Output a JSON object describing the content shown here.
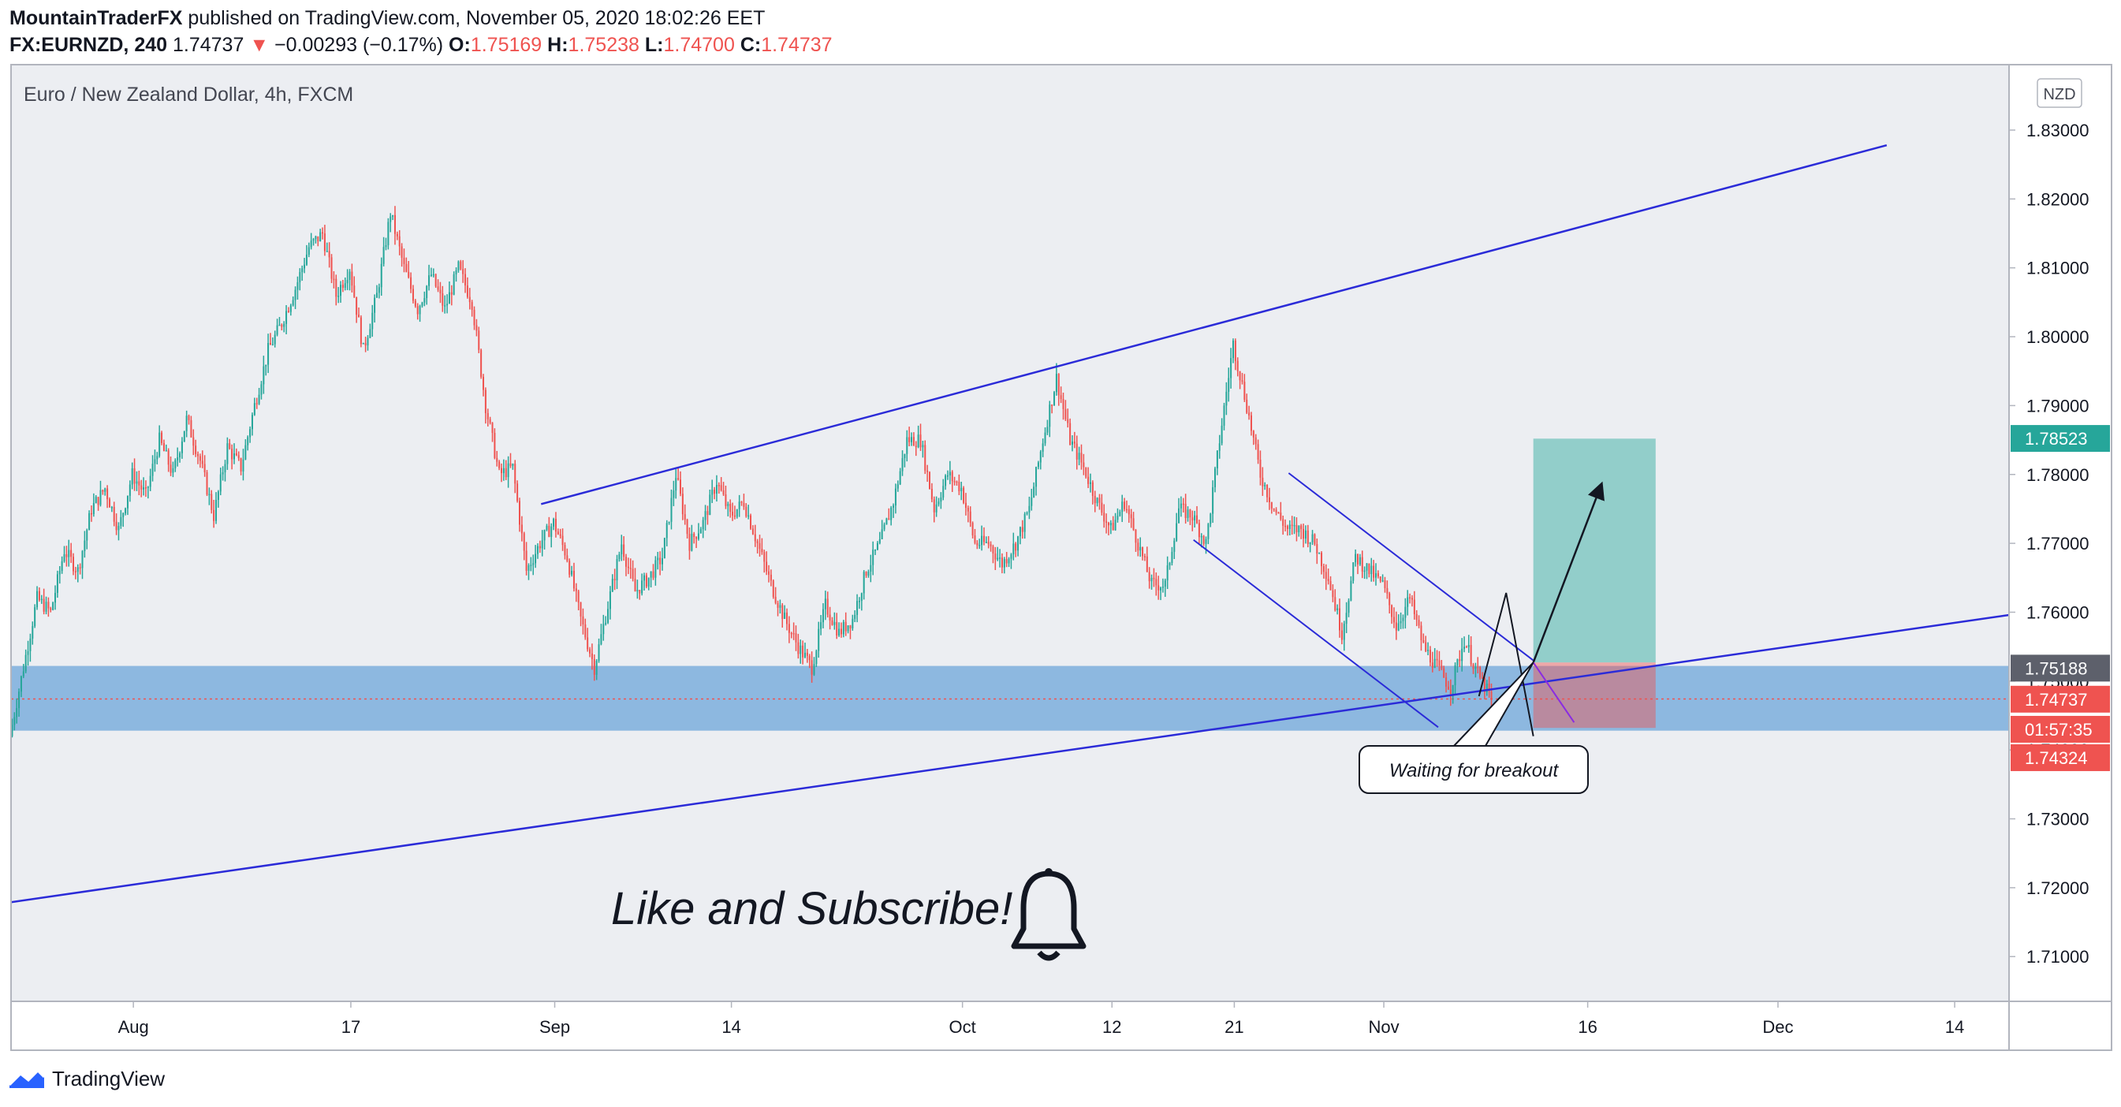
{
  "header": {
    "publisher": "MountainTraderFX",
    "published_text": "published on TradingView.com, November 05, 2020 18:02:26 EET",
    "symbol": "FX:EURNZD, 240",
    "price": "1.74737",
    "change_arrow": "▼",
    "change": "−0.00293 (−0.17%)",
    "o_label": "O:",
    "o_value": "1.75169",
    "h_label": "H:",
    "h_value": "1.75238",
    "l_label": "L:",
    "l_value": "1.74700",
    "c_label": "C:",
    "c_value": "1.74737"
  },
  "chart_data": {
    "type": "candlestick",
    "title": "Euro / New Zealand Dollar, 4h, FXCM",
    "currency": "NZD",
    "ylim": [
      1.7035,
      1.8395
    ],
    "y_ticks": [
      "1.83000",
      "1.82000",
      "1.81000",
      "1.80000",
      "1.79000",
      "1.78000",
      "1.77000",
      "1.76000",
      "1.75000",
      "1.74000",
      "1.73000",
      "1.72000",
      "1.71000"
    ],
    "y_tick_values": [
      1.83,
      1.82,
      1.81,
      1.8,
      1.79,
      1.78,
      1.77,
      1.76,
      1.75,
      1.74,
      1.73,
      1.72,
      1.71
    ],
    "x_ticks": [
      {
        "label": "Aug",
        "day": 0
      },
      {
        "label": "17",
        "day": 16
      },
      {
        "label": "Sep",
        "day": 31
      },
      {
        "label": "14",
        "day": 44
      },
      {
        "label": "Oct",
        "day": 61
      },
      {
        "label": "12",
        "day": 72
      },
      {
        "label": "21",
        "day": 81
      },
      {
        "label": "Nov",
        "day": 92
      },
      {
        "label": "16",
        "day": 107
      },
      {
        "label": "Dec",
        "day": 121
      },
      {
        "label": "14",
        "day": 134
      }
    ],
    "x_domain_days": [
      -9,
      138
    ],
    "price_series": [
      [
        -9,
        1.742
      ],
      [
        -8,
        1.752
      ],
      [
        -7,
        1.762
      ],
      [
        -6,
        1.76
      ],
      [
        -5,
        1.769
      ],
      [
        -4,
        1.766
      ],
      [
        -3,
        1.775
      ],
      [
        -2,
        1.778
      ],
      [
        -1,
        1.772
      ],
      [
        0,
        1.78
      ],
      [
        1,
        1.777
      ],
      [
        2,
        1.785
      ],
      [
        3,
        1.78
      ],
      [
        4,
        1.788
      ],
      [
        5,
        1.782
      ],
      [
        6,
        1.774
      ],
      [
        7,
        1.784
      ],
      [
        8,
        1.781
      ],
      [
        9,
        1.79
      ],
      [
        10,
        1.798
      ],
      [
        11,
        1.802
      ],
      [
        12,
        1.807
      ],
      [
        13,
        1.813
      ],
      [
        14,
        1.815
      ],
      [
        15,
        1.806
      ],
      [
        16,
        1.81
      ],
      [
        17,
        1.798
      ],
      [
        18,
        1.806
      ],
      [
        19,
        1.818
      ],
      [
        20,
        1.81
      ],
      [
        21,
        1.804
      ],
      [
        22,
        1.809
      ],
      [
        23,
        1.804
      ],
      [
        24,
        1.81
      ],
      [
        25,
        1.805
      ],
      [
        26,
        1.79
      ],
      [
        27,
        1.78
      ],
      [
        28,
        1.781
      ],
      [
        29,
        1.766
      ],
      [
        30,
        1.77
      ],
      [
        31,
        1.773
      ],
      [
        32,
        1.768
      ],
      [
        33,
        1.759
      ],
      [
        34,
        1.752
      ],
      [
        35,
        1.761
      ],
      [
        36,
        1.77
      ],
      [
        37,
        1.763
      ],
      [
        38,
        1.765
      ],
      [
        39,
        1.768
      ],
      [
        40,
        1.78
      ],
      [
        41,
        1.77
      ],
      [
        42,
        1.773
      ],
      [
        43,
        1.779
      ],
      [
        44,
        1.774
      ],
      [
        45,
        1.776
      ],
      [
        46,
        1.77
      ],
      [
        47,
        1.764
      ],
      [
        48,
        1.759
      ],
      [
        49,
        1.755
      ],
      [
        50,
        1.752
      ],
      [
        51,
        1.761
      ],
      [
        52,
        1.757
      ],
      [
        53,
        1.759
      ],
      [
        54,
        1.766
      ],
      [
        55,
        1.77
      ],
      [
        56,
        1.776
      ],
      [
        57,
        1.785
      ],
      [
        58,
        1.785
      ],
      [
        59,
        1.775
      ],
      [
        60,
        1.78
      ],
      [
        61,
        1.778
      ],
      [
        62,
        1.77
      ],
      [
        63,
        1.77
      ],
      [
        64,
        1.767
      ],
      [
        65,
        1.77
      ],
      [
        66,
        1.775
      ],
      [
        67,
        1.785
      ],
      [
        68,
        1.794
      ],
      [
        69,
        1.785
      ],
      [
        70,
        1.781
      ],
      [
        71,
        1.776
      ],
      [
        72,
        1.772
      ],
      [
        73,
        1.776
      ],
      [
        74,
        1.77
      ],
      [
        75,
        1.764
      ],
      [
        76,
        1.764
      ],
      [
        77,
        1.775
      ],
      [
        78,
        1.774
      ],
      [
        79,
        1.77
      ],
      [
        80,
        1.785
      ],
      [
        81,
        1.799
      ],
      [
        82,
        1.79
      ],
      [
        83,
        1.78
      ],
      [
        84,
        1.775
      ],
      [
        85,
        1.772
      ],
      [
        86,
        1.772
      ],
      [
        87,
        1.77
      ],
      [
        88,
        1.765
      ],
      [
        89,
        1.757
      ],
      [
        90,
        1.768
      ],
      [
        91,
        1.766
      ],
      [
        92,
        1.764
      ],
      [
        93,
        1.758
      ],
      [
        94,
        1.762
      ],
      [
        95,
        1.755
      ],
      [
        96,
        1.752
      ],
      [
        97,
        1.749
      ],
      [
        98,
        1.756
      ],
      [
        99,
        1.751
      ],
      [
        100,
        1.7474
      ]
    ],
    "support_zone": {
      "top": 1.7522,
      "bottom": 1.7428
    },
    "zone_line": 1.7474,
    "channel_upper": {
      "start": [
        30,
        1.7757
      ],
      "end": [
        129,
        1.8278
      ]
    },
    "channel_lower": {
      "start": [
        -9,
        1.7179
      ],
      "end": [
        138,
        1.7596
      ]
    },
    "wedge_upper": {
      "start": [
        85,
        1.7802
      ],
      "end": [
        103,
        1.753
      ]
    },
    "wedge_lower": {
      "start": [
        78,
        1.7705
      ],
      "end": [
        96,
        1.7433
      ]
    },
    "projection_triangle": [
      [
        99,
        1.7478
      ],
      [
        101,
        1.7628
      ],
      [
        103,
        1.742
      ]
    ],
    "arrow_up": {
      "start": [
        103,
        1.7527
      ],
      "end": [
        108,
        1.7785
      ]
    },
    "arrow_down": {
      "start": [
        103,
        1.7527
      ],
      "end": [
        106,
        1.744
      ]
    },
    "target_box": {
      "x1": 103,
      "x2": 112,
      "top": 1.7852,
      "bottom": 1.7527
    },
    "stop_box": {
      "x1": 103,
      "x2": 112,
      "top": 1.7527,
      "bottom": 1.7432
    },
    "annotation": "Waiting for breakout",
    "caption": "Like and Subscribe!",
    "price_labels": [
      {
        "text": "1.78523",
        "value": 1.78523,
        "color": "#26a69a"
      },
      {
        "text": "1.75188",
        "value": 1.75188,
        "color": "#5d606b"
      },
      {
        "text": "1.74737",
        "value": 1.74737,
        "color": "#ef5350"
      },
      {
        "text": "01:57:35",
        "value": 1.743,
        "color": "#ef5350"
      },
      {
        "text": "1.74324",
        "value": 1.74324,
        "color": "#ef5350"
      }
    ],
    "colors": {
      "up": "#26a69a",
      "down": "#ef5350",
      "zone": "#5b9bd5",
      "lines": "#2b2bd8",
      "target": "#26a69a",
      "stop": "#ef5350"
    }
  },
  "footer": {
    "brand": "TradingView"
  }
}
